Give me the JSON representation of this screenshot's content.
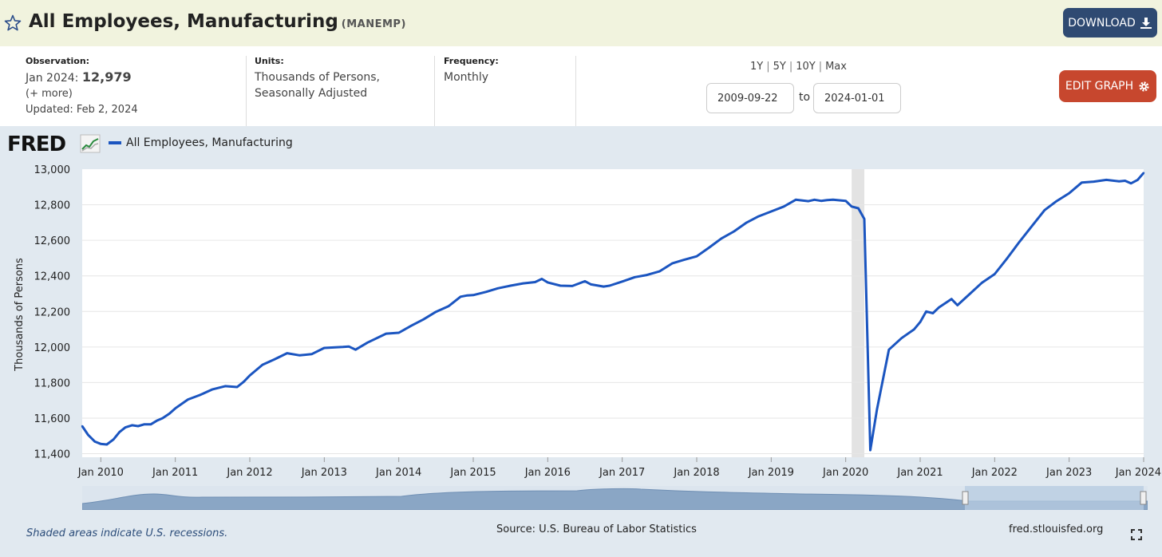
{
  "header": {
    "title": "All Employees, Manufacturing",
    "series_code": "(MANEMP)",
    "download_label": "DOWNLOAD"
  },
  "meta": {
    "observation_label": "Observation:",
    "observation_date": "Jan 2024:",
    "observation_value": "12,979",
    "more": "(+ more)",
    "updated": "Updated: Feb 2, 2024",
    "units_label": "Units:",
    "units_line1": "Thousands of Persons,",
    "units_line2": "Seasonally Adjusted",
    "frequency_label": "Frequency:",
    "frequency_value": "Monthly"
  },
  "controls": {
    "ranges": [
      "1Y",
      "5Y",
      "10Y",
      "Max"
    ],
    "start_date": "2009-09-22",
    "to_label": "to",
    "end_date": "2024-01-01",
    "edit_label": "EDIT GRAPH"
  },
  "logo": "FRED",
  "footer": {
    "recession_note": "Shaded areas indicate U.S. recessions.",
    "source": "Source: U.S. Bureau of Labor Statistics",
    "site": "fred.stlouisfed.org"
  },
  "colors": {
    "series": "#1b55c0",
    "recession": "#e3e3e3",
    "background": "#e1e9f0",
    "download": "#2f4a72",
    "edit": "#c7472e"
  },
  "chart_data": {
    "type": "line",
    "ylabel": "Thousands of Persons",
    "ylim": [
      11380,
      13000
    ],
    "xlim": [
      2009.75,
      2024.0
    ],
    "y_ticks": [
      "13,000",
      "12,800",
      "12,600",
      "12,400",
      "12,200",
      "12,000",
      "11,800",
      "11,600",
      "11,400"
    ],
    "y_tick_values": [
      13000,
      12800,
      12600,
      12400,
      12200,
      12000,
      11800,
      11600,
      11400
    ],
    "x_ticks": [
      "Jan 2010",
      "Jan 2011",
      "Jan 2012",
      "Jan 2013",
      "Jan 2014",
      "Jan 2015",
      "Jan 2016",
      "Jan 2017",
      "Jan 2018",
      "Jan 2019",
      "Jan 2020",
      "Jan 2021",
      "Jan 2022",
      "Jan 2023",
      "Jan 2024"
    ],
    "x_tick_values": [
      2010,
      2011,
      2012,
      2013,
      2014,
      2015,
      2016,
      2017,
      2018,
      2019,
      2020,
      2021,
      2022,
      2023,
      2024
    ],
    "recessions": [
      [
        2020.08,
        2020.25
      ]
    ],
    "grid": true,
    "legend": "top-left",
    "series": [
      {
        "name": "All Employees, Manufacturing",
        "x": [
          2009.75,
          2009.83,
          2009.92,
          2010.0,
          2010.08,
          2010.17,
          2010.25,
          2010.33,
          2010.42,
          2010.5,
          2010.58,
          2010.67,
          2010.75,
          2010.83,
          2010.92,
          2011.0,
          2011.17,
          2011.33,
          2011.5,
          2011.67,
          2011.83,
          2011.92,
          2012.0,
          2012.17,
          2012.33,
          2012.5,
          2012.67,
          2012.83,
          2013.0,
          2013.25,
          2013.33,
          2013.42,
          2013.58,
          2013.83,
          2014.0,
          2014.17,
          2014.33,
          2014.5,
          2014.67,
          2014.83,
          2014.92,
          2015.0,
          2015.17,
          2015.33,
          2015.5,
          2015.67,
          2015.83,
          2015.92,
          2016.0,
          2016.17,
          2016.33,
          2016.5,
          2016.58,
          2016.75,
          2016.83,
          2017.0,
          2017.17,
          2017.33,
          2017.5,
          2017.67,
          2017.83,
          2018.0,
          2018.17,
          2018.33,
          2018.5,
          2018.67,
          2018.83,
          2019.0,
          2019.17,
          2019.33,
          2019.5,
          2019.58,
          2019.67,
          2019.75,
          2019.83,
          2020.0,
          2020.08,
          2020.17,
          2020.25,
          2020.33,
          2020.42,
          2020.58,
          2020.75,
          2020.92,
          2021.0,
          2021.08,
          2021.17,
          2021.25,
          2021.42,
          2021.5,
          2021.67,
          2021.83,
          2022.0,
          2022.17,
          2022.33,
          2022.5,
          2022.67,
          2022.83,
          2023.0,
          2023.17,
          2023.33,
          2023.5,
          2023.67,
          2023.75,
          2023.83,
          2023.92,
          2024.0
        ],
        "values": [
          11555,
          11505,
          11468,
          11455,
          11452,
          11480,
          11522,
          11548,
          11560,
          11555,
          11565,
          11565,
          11585,
          11600,
          11625,
          11655,
          11705,
          11730,
          11762,
          11780,
          11775,
          11805,
          11840,
          11900,
          11930,
          11965,
          11953,
          11960,
          11995,
          12000,
          12003,
          11985,
          12025,
          12075,
          12080,
          12120,
          12155,
          12198,
          12230,
          12283,
          12290,
          12292,
          12310,
          12330,
          12345,
          12358,
          12365,
          12383,
          12363,
          12345,
          12343,
          12370,
          12352,
          12340,
          12345,
          12368,
          12393,
          12405,
          12425,
          12470,
          12490,
          12510,
          12560,
          12610,
          12650,
          12700,
          12735,
          12762,
          12790,
          12828,
          12820,
          12828,
          12822,
          12826,
          12828,
          12822,
          12790,
          12780,
          12720,
          11420,
          11650,
          11985,
          12050,
          12100,
          12140,
          12200,
          12190,
          12222,
          12270,
          12235,
          12300,
          12362,
          12410,
          12500,
          12590,
          12680,
          12770,
          12820,
          12865,
          12925,
          12930,
          12940,
          12932,
          12935,
          12920,
          12940,
          12979
        ]
      }
    ]
  }
}
